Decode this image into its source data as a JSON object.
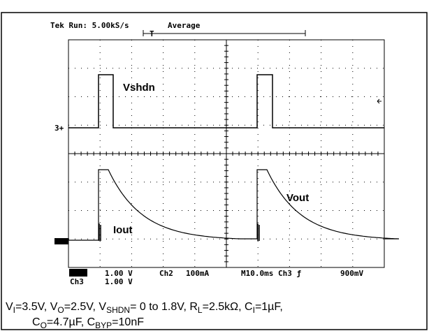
{
  "scope": {
    "header": {
      "status": "Tek Run: 5.00kS/s",
      "mode": "Average",
      "trigger": "T"
    },
    "markers": {
      "ch3": "3+"
    },
    "traces": {
      "vshdn": "Vshdn",
      "vout": "Vout",
      "iout": "Iout"
    },
    "readout": {
      "row1": [
        "Ch1",
        "1.00 V",
        "Ch2",
        "100mA",
        "M10.0ms",
        "Ch3 ƒ",
        "900mV"
      ],
      "row2": [
        "Ch3",
        "1.00 V"
      ]
    }
  },
  "caption": {
    "line1": [
      "V",
      "I",
      "=3.5V, V",
      "O",
      "=2.5V, V",
      "SHDN",
      "= 0 to 1.8V, R",
      "L",
      "=2.5kΩ, C",
      "I",
      "=1µF,"
    ],
    "line2": [
      "C",
      "O",
      "=4.7µF, C",
      "BYP",
      "=10nF"
    ]
  }
}
